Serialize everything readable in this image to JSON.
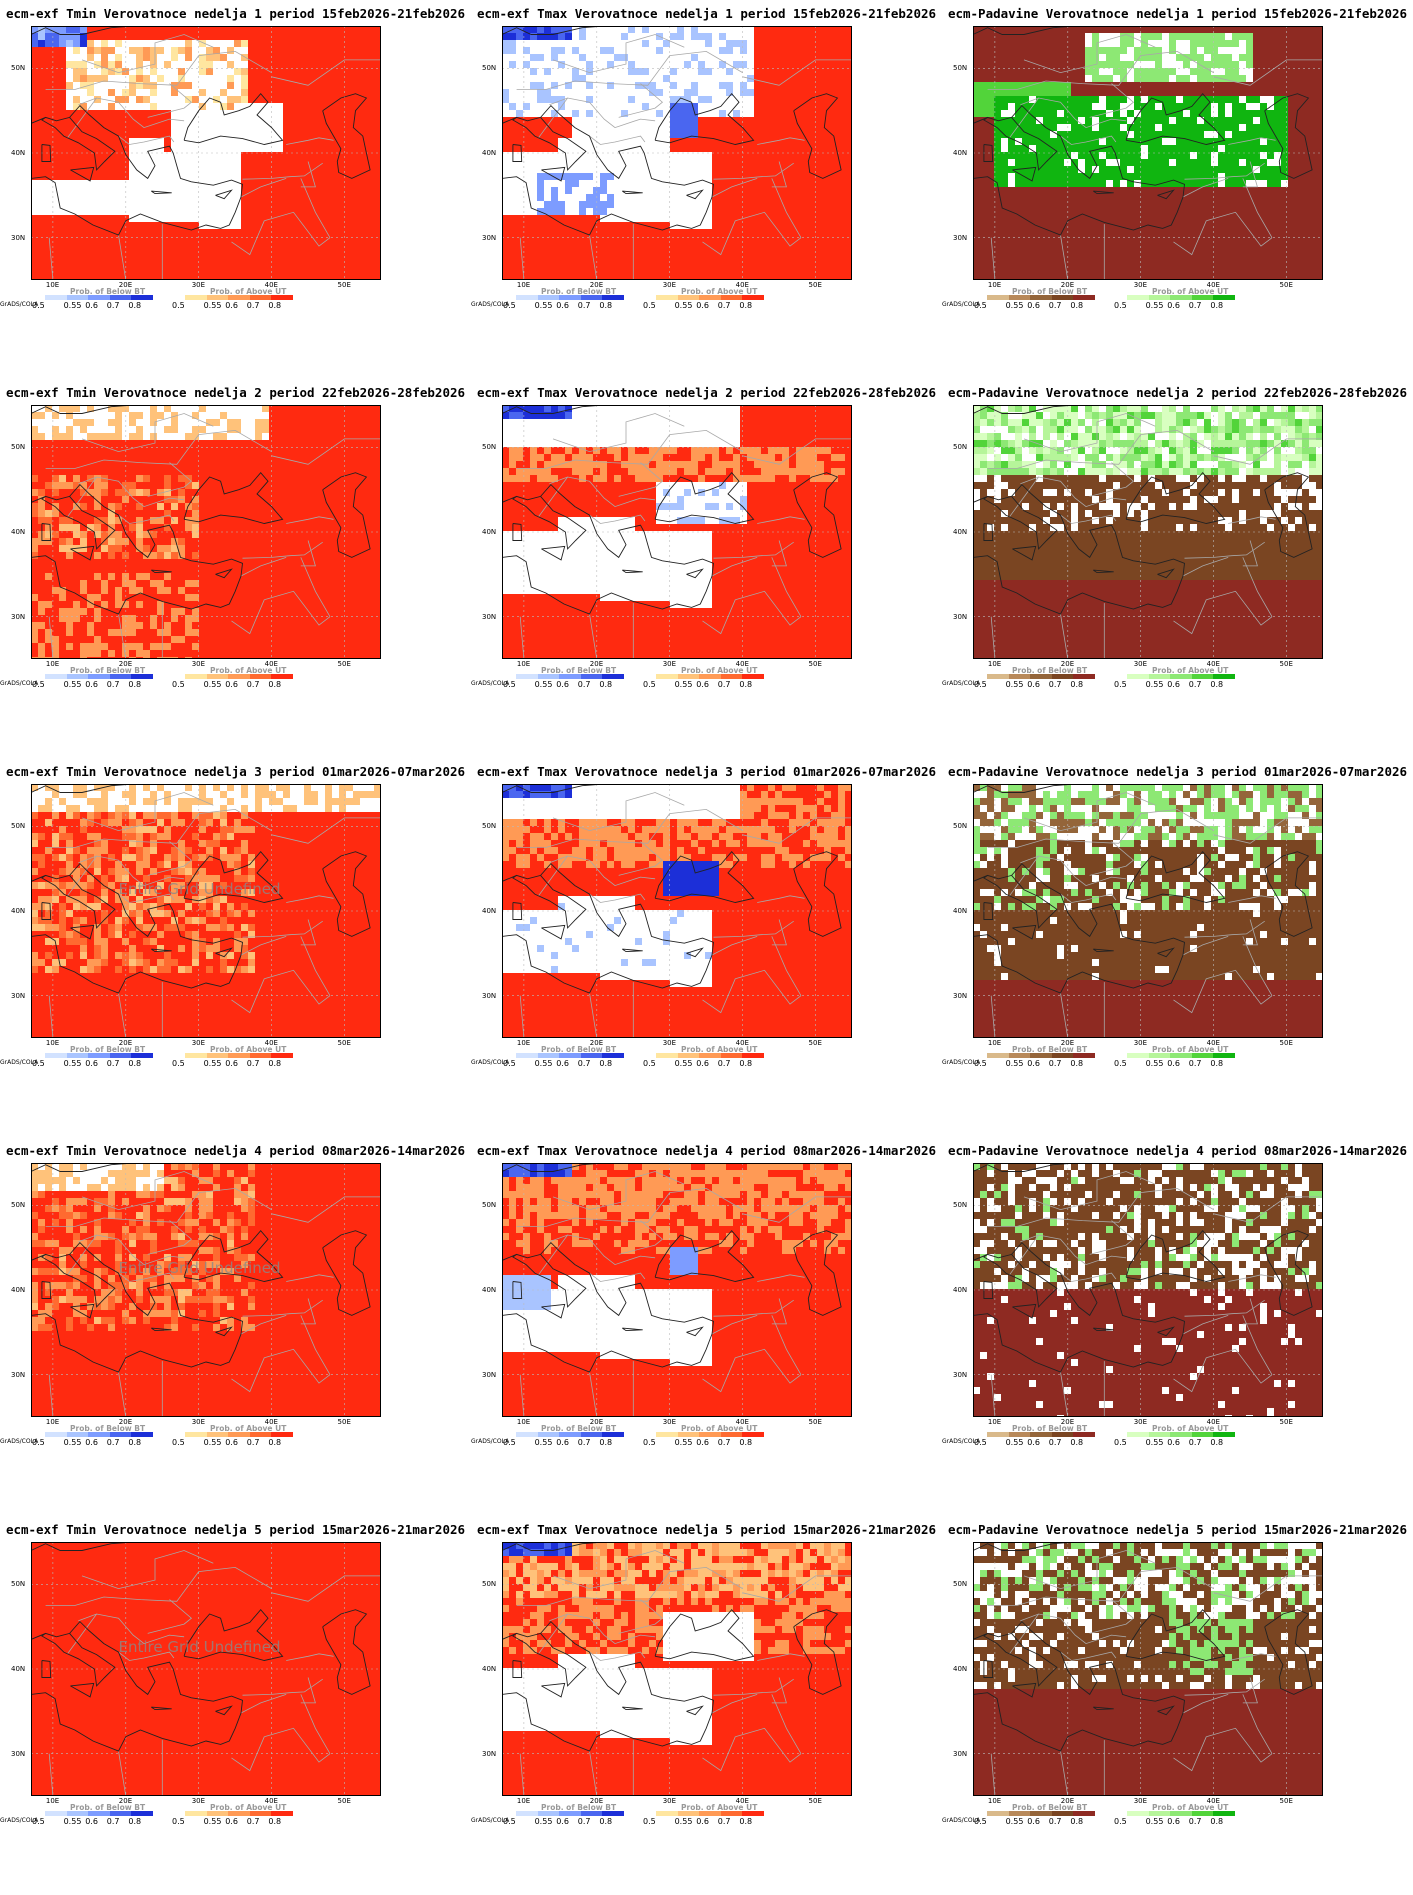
{
  "panels": [
    {
      "id": "r1c1",
      "title": "ecm-exf Tmin Verovatnoce nedelja 1 period 15feb2026-21feb2026",
      "variable": "tmin",
      "week": 1,
      "legend_left_title": "Prob. of Below BT",
      "legend_right_title": "Prob. of Above UT",
      "undefined_label": ""
    },
    {
      "id": "r1c2",
      "title": "ecm-exf Tmax Verovatnoce nedelja 1 period 15feb2026-21feb2026",
      "variable": "tmax",
      "week": 1,
      "legend_left_title": "Prob. of Below BT",
      "legend_right_title": "Prob. of Above UT",
      "undefined_label": ""
    },
    {
      "id": "r1c3",
      "title": "ecm-Padavine Verovatnoce nedelja 1 period 15feb2026-21feb2026",
      "variable": "precip",
      "week": 1,
      "legend_left_title": "Prob. of Below BT",
      "legend_right_title": "Prob. of Above UT",
      "undefined_label": ""
    },
    {
      "id": "r2c1",
      "title": "ecm-exf Tmin Verovatnoce nedelja 2 period 22feb2026-28feb2026",
      "variable": "tmin",
      "week": 2,
      "legend_left_title": "Prob. of Below BT",
      "legend_right_title": "Prob. of Above UT",
      "undefined_label": ""
    },
    {
      "id": "r2c2",
      "title": "ecm-exf Tmax Verovatnoce nedelja 2 period 22feb2026-28feb2026",
      "variable": "tmax",
      "week": 2,
      "legend_left_title": "Prob. of Below BT",
      "legend_right_title": "Prob. of Above UT",
      "undefined_label": ""
    },
    {
      "id": "r2c3",
      "title": "ecm-Padavine Verovatnoce nedelja 2 period 22feb2026-28feb2026",
      "variable": "precip",
      "week": 2,
      "legend_left_title": "Prob. of Below BT",
      "legend_right_title": "Prob. of Above UT",
      "undefined_label": ""
    },
    {
      "id": "r3c1",
      "title": "ecm-exf Tmin Verovatnoce nedelja 3 period 01mar2026-07mar2026",
      "variable": "tmin",
      "week": 3,
      "legend_left_title": "Prob. of Below BT",
      "legend_right_title": "Prob. of Above UT",
      "undefined_label": "Entire Grid Undefined"
    },
    {
      "id": "r3c2",
      "title": "ecm-exf Tmax Verovatnoce nedelja 3 period 01mar2026-07mar2026",
      "variable": "tmax",
      "week": 3,
      "legend_left_title": "Prob. of Below BT",
      "legend_right_title": "Prob. of Above UT",
      "undefined_label": ""
    },
    {
      "id": "r3c3",
      "title": "ecm-Padavine Verovatnoce nedelja 3 period 01mar2026-07mar2026",
      "variable": "precip",
      "week": 3,
      "legend_left_title": "Prob. of Below BT",
      "legend_right_title": "Prob. of Above UT",
      "undefined_label": ""
    },
    {
      "id": "r4c1",
      "title": "ecm-exf Tmin Verovatnoce nedelja 4 period 08mar2026-14mar2026",
      "variable": "tmin",
      "week": 4,
      "legend_left_title": "Prob. of Below BT",
      "legend_right_title": "Prob. of Above UT",
      "undefined_label": "Entire Grid Undefined"
    },
    {
      "id": "r4c2",
      "title": "ecm-exf Tmax Verovatnoce nedelja 4 period 08mar2026-14mar2026",
      "variable": "tmax",
      "week": 4,
      "legend_left_title": "Prob. of Below BT",
      "legend_right_title": "Prob. of Above UT",
      "undefined_label": ""
    },
    {
      "id": "r4c3",
      "title": "ecm-Padavine Verovatnoce nedelja 4 period 08mar2026-14mar2026",
      "variable": "precip",
      "week": 4,
      "legend_left_title": "Prob. of Below BT",
      "legend_right_title": "Prob. of Above UT",
      "undefined_label": ""
    },
    {
      "id": "r5c1",
      "title": "ecm-exf Tmin Verovatnoce nedelja 5 period 15mar2026-21mar2026",
      "variable": "tmin",
      "week": 5,
      "legend_left_title": "Prob. of Below BT",
      "legend_right_title": "Prob. of Above UT",
      "undefined_label": "Entire Grid Undefined"
    },
    {
      "id": "r5c2",
      "title": "ecm-exf Tmax Verovatnoce nedelja 5 period 15mar2026-21mar2026",
      "variable": "tmax",
      "week": 5,
      "legend_left_title": "Prob. of Below BT",
      "legend_right_title": "Prob. of Above UT",
      "undefined_label": ""
    },
    {
      "id": "r5c3",
      "title": "ecm-Padavine Verovatnoce nedelja 5 period 15mar2026-21mar2026",
      "variable": "precip",
      "week": 5,
      "legend_left_title": "Prob. of Below BT",
      "legend_right_title": "Prob. of Above UT",
      "undefined_label": ""
    }
  ],
  "axes": {
    "lon_ticks": [
      "10E",
      "20E",
      "30E",
      "40E",
      "50E"
    ],
    "lat_ticks": [
      "50N",
      "40N",
      "30N"
    ],
    "lon_range": [
      7,
      55
    ],
    "lat_range": [
      25,
      55
    ]
  },
  "legend": {
    "grads_label": "GrADS/COLA",
    "levels": [
      "0.5",
      "0.55",
      "0.6",
      "0.7",
      "0.8"
    ],
    "temp_below_colors": [
      "#d2e2ff",
      "#a9c4ff",
      "#7d9cff",
      "#4a66f0",
      "#1c2fd8"
    ],
    "temp_above_colors": [
      "#ffe6a0",
      "#ffc27a",
      "#ff9a55",
      "#ff6a30",
      "#ff2a10"
    ],
    "precip_below_colors": [
      "#d9b98a",
      "#b8895a",
      "#94653a",
      "#7a4522",
      "#8e2a22"
    ],
    "precip_above_colors": [
      "#d8ffc0",
      "#b6f59a",
      "#8de874",
      "#52d43a",
      "#10b510"
    ]
  },
  "colors": {
    "land_line": "#a8a8a8",
    "coast_line": "#222222",
    "grid_line": "#bbbbbb",
    "white": "#ffffff",
    "undefined_text": "#8a8a8a"
  }
}
